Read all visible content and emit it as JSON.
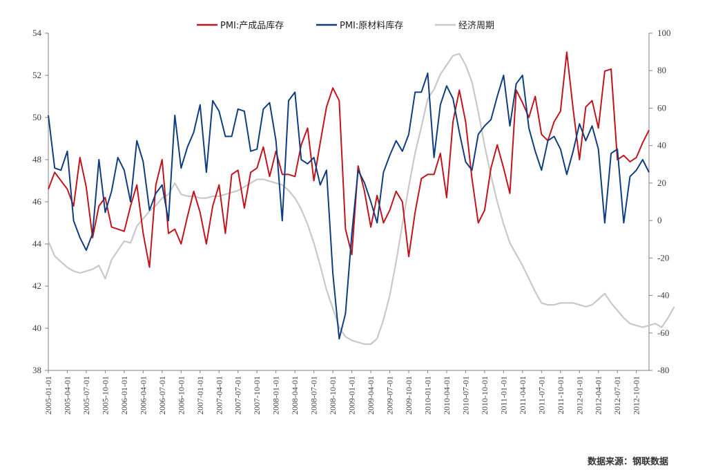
{
  "source_note": "数据来源：钢联数据",
  "chart_data": {
    "type": "line",
    "legend_position": "top-center",
    "grid": false,
    "y_left": {
      "min": 38,
      "max": 54,
      "step": 2,
      "ticks": [
        "38",
        "40",
        "42",
        "44",
        "46",
        "48",
        "50",
        "52",
        "54"
      ]
    },
    "y_right": {
      "min": -80,
      "max": 100,
      "step": 20,
      "ticks": [
        "-80",
        "-60",
        "-40",
        "-20",
        "0",
        "20",
        "40",
        "60",
        "80",
        "100"
      ]
    },
    "x_ticks": [
      "2005-01-01",
      "2005-04-01",
      "2005-07-01",
      "2005-10-01",
      "2006-01-01",
      "2006-04-01",
      "2006-07-01",
      "2006-10-01",
      "2007-01-01",
      "2007-04-01",
      "2007-07-01",
      "2007-10-01",
      "2008-01-01",
      "2008-04-01",
      "2008-07-01",
      "2008-10-01",
      "2009-01-01",
      "2009-04-01",
      "2009-07-01",
      "2009-10-01",
      "2010-01-01",
      "2010-04-01",
      "2010-07-01",
      "2010-10-01",
      "2011-01-01",
      "2011-04-01",
      "2011-07-01",
      "2011-10-01",
      "2012-01-01",
      "2012-04-01",
      "2012-07-01",
      "2012-10-01"
    ],
    "x_start": "2005-01",
    "series": [
      {
        "name": "PMI:产成品库存",
        "axis": "left",
        "color": "#c0141c",
        "values": [
          46.6,
          47.4,
          47.0,
          46.6,
          45.8,
          48.1,
          46.7,
          44.3,
          45.8,
          46.2,
          44.8,
          44.7,
          44.6,
          45.8,
          46.8,
          44.5,
          42.9,
          46.8,
          48.0,
          44.5,
          44.7,
          44.0,
          45.3,
          46.5,
          45.5,
          44.0,
          45.8,
          46.8,
          44.5,
          47.3,
          47.5,
          45.7,
          47.4,
          47.6,
          48.6,
          47.2,
          48.4,
          47.3,
          47.3,
          47.2,
          48.7,
          49.5,
          47.0,
          48.8,
          50.5,
          51.4,
          50.8,
          44.7,
          43.5,
          47.7,
          46.5,
          44.8,
          46.3,
          45.0,
          45.6,
          46.5,
          46.0,
          43.4,
          45.5,
          47.1,
          47.3,
          47.3,
          48.3,
          46.2,
          49.8,
          51.3,
          49.8,
          47.1,
          45.0,
          45.6,
          47.6,
          48.7,
          47.6,
          46.4,
          51.3,
          50.7,
          50.0,
          51.0,
          49.2,
          48.9,
          49.8,
          50.3,
          53.1,
          50.4,
          48.0,
          50.5,
          50.8,
          49.5,
          52.2,
          52.3,
          48.0,
          48.2,
          47.9,
          48.1,
          48.8,
          49.4
        ]
      },
      {
        "name": "PMI:原材料库存",
        "axis": "left",
        "color": "#0e3d7f",
        "values": [
          50.1,
          47.6,
          47.5,
          48.4,
          45.1,
          44.3,
          43.7,
          44.5,
          48.0,
          45.5,
          46.5,
          48.1,
          47.5,
          46.0,
          48.9,
          47.9,
          45.6,
          46.4,
          46.8,
          45.1,
          50.1,
          47.6,
          48.6,
          49.3,
          50.6,
          47.4,
          50.8,
          50.3,
          49.1,
          49.1,
          50.4,
          50.3,
          48.4,
          48.5,
          50.4,
          50.7,
          48.9,
          45.1,
          50.8,
          51.2,
          48.0,
          47.8,
          48.1,
          46.8,
          47.5,
          42.6,
          39.5,
          40.7,
          44.5,
          47.5,
          46.9,
          46.0,
          45.0,
          47.4,
          48.2,
          48.9,
          48.4,
          49.2,
          51.2,
          51.2,
          52.1,
          48.1,
          50.6,
          51.5,
          50.9,
          49.3,
          47.9,
          47.5,
          49.2,
          49.6,
          49.9,
          51.0,
          52.0,
          49.6,
          51.6,
          52.0,
          49.5,
          48.4,
          47.5,
          48.9,
          49.1,
          48.5,
          47.3,
          48.4,
          49.7,
          48.9,
          49.6,
          48.5,
          45.0,
          48.3,
          48.5,
          45.0,
          47.2,
          47.5,
          48.0,
          47.4
        ]
      },
      {
        "name": "经济周期",
        "axis": "right",
        "color": "#c8c8c8",
        "values": [
          -11,
          -19,
          -22,
          -25,
          -27,
          -28,
          -27,
          -26,
          -24,
          -31,
          -21,
          -16,
          -11,
          -12,
          -3,
          1,
          5,
          8,
          12,
          14,
          20,
          14,
          13,
          13,
          12,
          12,
          13,
          13,
          14,
          15,
          16,
          18,
          20,
          22,
          22,
          21,
          20,
          19,
          16,
          12,
          6,
          -2,
          -12,
          -24,
          -37,
          -47,
          -57,
          -62,
          -64,
          -65,
          -66,
          -66,
          -63,
          -53,
          -40,
          -22,
          -2,
          18,
          36,
          50,
          65,
          70,
          78,
          83,
          88,
          89,
          83,
          74,
          58,
          40,
          24,
          10,
          -2,
          -12,
          -18,
          -24,
          -31,
          -38,
          -44,
          -45,
          -45,
          -44,
          -44,
          -44,
          -45,
          -46,
          -45,
          -42,
          -39,
          -44,
          -48,
          -52,
          -55,
          -56,
          -57,
          -56,
          -55,
          -57,
          -52,
          -46
        ]
      }
    ]
  }
}
